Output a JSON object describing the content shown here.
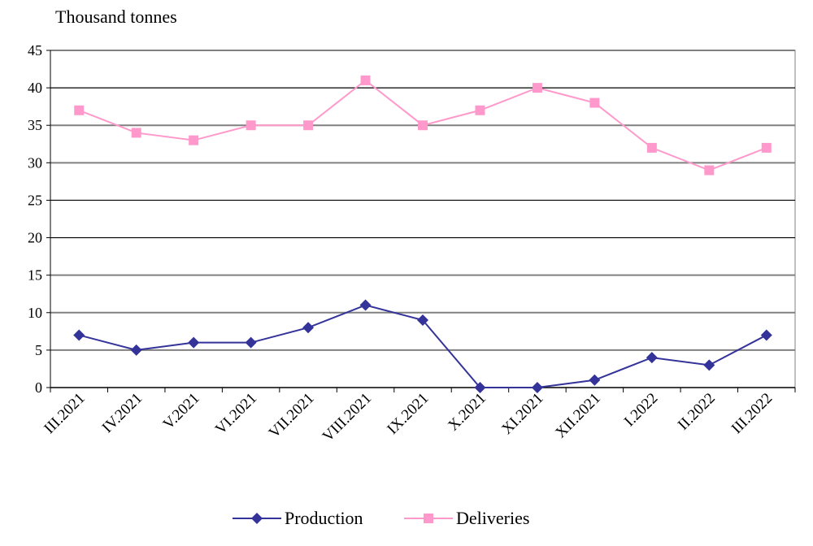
{
  "unit_label": "Thousand tonnes",
  "chart_data": {
    "type": "line",
    "categories": [
      "III.2021",
      "IV.2021",
      "V.2021",
      "VI.2021",
      "VII.2021",
      "VIII.2021",
      "IX.2021",
      "X.2021",
      "XI.2021",
      "XII.2021",
      "I.2022",
      "II.2022",
      "III.2022"
    ],
    "ylim": [
      0,
      45
    ],
    "yticks": [
      0,
      5,
      10,
      15,
      20,
      25,
      30,
      35,
      40,
      45
    ],
    "ylabel": "Thousand tonnes",
    "grid": true,
    "legend_position": "bottom",
    "series": [
      {
        "name": "Production",
        "color": "#333399",
        "marker": "diamond",
        "values": [
          7,
          5,
          6,
          6,
          8,
          11,
          9,
          0,
          0,
          1,
          4,
          3,
          7
        ]
      },
      {
        "name": "Deliveries",
        "color": "#FF99CC",
        "marker": "square",
        "values": [
          37,
          34,
          33,
          35,
          35,
          41,
          35,
          37,
          40,
          38,
          32,
          29,
          32
        ]
      }
    ]
  }
}
